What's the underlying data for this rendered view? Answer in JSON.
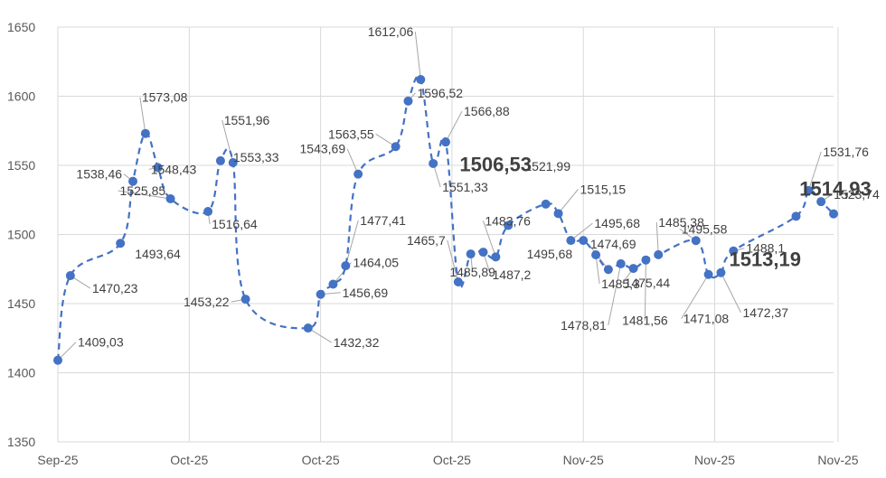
{
  "chart_data": {
    "type": "line",
    "title": "",
    "xlabel": "",
    "ylabel": "",
    "ylim": [
      1350,
      1650
    ],
    "yticks": [
      1350,
      1400,
      1450,
      1500,
      1550,
      1600,
      1650
    ],
    "ytick_labels": [
      "1350",
      "1400",
      "1450",
      "1500",
      "1550",
      "1600",
      "1650"
    ],
    "xtick_labels": [
      "Sep-25",
      "Oct-25",
      "Oct-25",
      "Oct-25",
      "Nov-25",
      "Nov-25",
      "Nov-25"
    ],
    "grid": true,
    "legend": "none",
    "series_color": "#4472c4",
    "line_style": "dashed-smooth",
    "points": [
      {
        "x": 0,
        "y": 1409.03,
        "label": "1409,03"
      },
      {
        "x": 1,
        "y": 1470.23,
        "label": "1470,23"
      },
      {
        "x": 5,
        "y": 1493.64,
        "label": "1493,64"
      },
      {
        "x": 6,
        "y": 1538.46,
        "label": "1538,46"
      },
      {
        "x": 7,
        "y": 1573.08,
        "label": "1573,08"
      },
      {
        "x": 8,
        "y": 1548.43,
        "label": "1548,43"
      },
      {
        "x": 9,
        "y": 1525.85,
        "label": "1525,85"
      },
      {
        "x": 12,
        "y": 1516.64,
        "label": "1516,64"
      },
      {
        "x": 13,
        "y": 1553.33,
        "label": "1553,33"
      },
      {
        "x": 14,
        "y": 1551.96,
        "label": "1551,96"
      },
      {
        "x": 15,
        "y": 1453.22,
        "label": "1453,22"
      },
      {
        "x": 20,
        "y": 1432.32,
        "label": "1432,32"
      },
      {
        "x": 21,
        "y": 1456.69,
        "label": "1456,69"
      },
      {
        "x": 22,
        "y": 1464.05,
        "label": "1464,05"
      },
      {
        "x": 23,
        "y": 1477.41,
        "label": "1477,41"
      },
      {
        "x": 24,
        "y": 1543.69,
        "label": "1543,69"
      },
      {
        "x": 27,
        "y": 1563.55,
        "label": "1563,55"
      },
      {
        "x": 28,
        "y": 1596.52,
        "label": "1596,52"
      },
      {
        "x": 29,
        "y": 1612.06,
        "label": "1612,06"
      },
      {
        "x": 30,
        "y": 1551.33,
        "label": "1551,33"
      },
      {
        "x": 31,
        "y": 1566.88,
        "label": "1566,88"
      },
      {
        "x": 32,
        "y": 1465.7,
        "label": "1465,7"
      },
      {
        "x": 33,
        "y": 1485.89,
        "label": "1485,89"
      },
      {
        "x": 34,
        "y": 1487.2,
        "label": "1487,2"
      },
      {
        "x": 35,
        "y": 1483.76,
        "label": "1483,76"
      },
      {
        "x": 36,
        "y": 1506.53,
        "label": "1506,53"
      },
      {
        "x": 39,
        "y": 1521.99,
        "label": "1521,99"
      },
      {
        "x": 40,
        "y": 1515.15,
        "label": "1515,15"
      },
      {
        "x": 41,
        "y": 1495.68,
        "label": "1495,68"
      },
      {
        "x": 42,
        "y": 1495.68,
        "label": "1495,68"
      },
      {
        "x": 43,
        "y": 1485.3,
        "label": "1485,3"
      },
      {
        "x": 44,
        "y": 1474.69,
        "label": "1474,69"
      },
      {
        "x": 45,
        "y": 1478.81,
        "label": "1478,81"
      },
      {
        "x": 46,
        "y": 1475.44,
        "label": "1475,44"
      },
      {
        "x": 47,
        "y": 1481.56,
        "label": "1481,56"
      },
      {
        "x": 48,
        "y": 1485.38,
        "label": "1485,38"
      },
      {
        "x": 51,
        "y": 1495.58,
        "label": "1495,58"
      },
      {
        "x": 52,
        "y": 1471.08,
        "label": "1471,08"
      },
      {
        "x": 53,
        "y": 1472.37,
        "label": "1472,37"
      },
      {
        "x": 54,
        "y": 1488.1,
        "label": "1488,1"
      },
      {
        "x": 59,
        "y": 1513.19,
        "label": "1513,19"
      },
      {
        "x": 60,
        "y": 1531.76,
        "label": "1531,76"
      },
      {
        "x": 61,
        "y": 1523.74,
        "label": "1523,74"
      },
      {
        "x": 62,
        "y": 1514.93,
        "label": "1514,93"
      }
    ]
  }
}
